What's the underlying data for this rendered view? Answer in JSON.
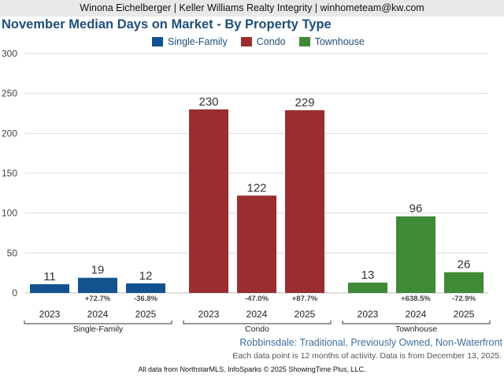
{
  "header": {
    "agent_line": "Winona Eichelberger | Keller Williams Realty Integrity | winhometeam@kw.com"
  },
  "colors": {
    "single_family": "#11538f",
    "condo": "#9a2d2e",
    "townhouse": "#3f8a34"
  },
  "chart_data": {
    "type": "bar",
    "title": "November Median Days on Market - By Property Type",
    "xlabel": "",
    "ylabel": "",
    "ylim": [
      0,
      300
    ],
    "yticks": [
      "0",
      "50",
      "100",
      "150",
      "200",
      "250",
      "300"
    ],
    "grid": true,
    "legend_position": "top-center",
    "legend": [
      "Single-Family",
      "Condo",
      "Townhouse"
    ],
    "groups": [
      {
        "name": "Single-Family",
        "color_key": "single_family",
        "years": [
          "2023",
          "2024",
          "2025"
        ],
        "values": [
          11,
          19,
          12
        ],
        "value_labels": [
          "11",
          "19",
          "12"
        ],
        "changes": [
          "",
          "+72.7%",
          "-36.8%"
        ]
      },
      {
        "name": "Condo",
        "color_key": "condo",
        "years": [
          "2023",
          "2024",
          "2025"
        ],
        "values": [
          230,
          122,
          229
        ],
        "value_labels": [
          "230",
          "122",
          "229"
        ],
        "changes": [
          "",
          "-47.0%",
          "+87.7%"
        ]
      },
      {
        "name": "Townhouse",
        "color_key": "townhouse",
        "years": [
          "2023",
          "2024",
          "2025"
        ],
        "values": [
          13,
          96,
          26
        ],
        "value_labels": [
          "13",
          "96",
          "26"
        ],
        "changes": [
          "",
          "+638.5%",
          "-72.9%"
        ]
      }
    ]
  },
  "subtitle": "Robbinsdale: Traditional, Previously Owned, Non-Waterfront",
  "note": "Each data point is 12 months of activity. Data is from December 13, 2025.",
  "footer": "All data from NorthstarMLS. InfoSparks © 2025 ShowingTime Plus, LLC."
}
